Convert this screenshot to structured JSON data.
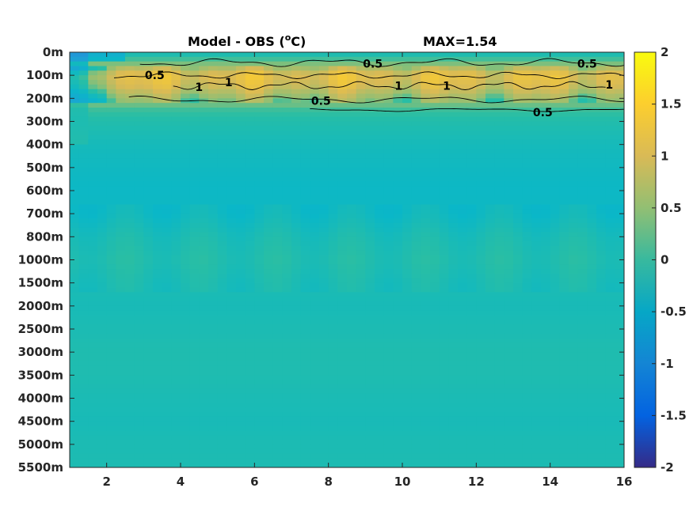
{
  "chart_data": {
    "type": "heatmap",
    "title_main": "Model - OBS (",
    "title_sup": "o",
    "title_tail": "C)",
    "max_label": "MAX=1.54",
    "x_ticks": [
      "2",
      "4",
      "6",
      "8",
      "10",
      "12",
      "14",
      "16"
    ],
    "x_tick_values": [
      2,
      4,
      6,
      8,
      10,
      12,
      14,
      16
    ],
    "xlim": [
      1,
      16
    ],
    "y_ticks": [
      "0m",
      "100m",
      "200m",
      "300m",
      "400m",
      "500m",
      "600m",
      "700m",
      "800m",
      "1000m",
      "1500m",
      "2000m",
      "2500m",
      "3000m",
      "3500m",
      "4000m",
      "4500m",
      "5000m",
      "5500m"
    ],
    "colorbar": {
      "range": [
        -2,
        2
      ],
      "ticks": [
        "2",
        "1.5",
        "1",
        "0.5",
        "0",
        "-0.5",
        "-1",
        "-1.5",
        "-2"
      ],
      "tick_values": [
        2,
        1.5,
        1,
        0.5,
        0,
        -0.5,
        -1,
        -1.5,
        -2
      ],
      "colormap": "parula"
    },
    "contour_levels": [
      0.5,
      1
    ],
    "contour_labels": [
      {
        "text": "0.5",
        "x": 3.3,
        "level": 1
      },
      {
        "text": "1",
        "x": 4.5,
        "level": 1.5
      },
      {
        "text": "1",
        "x": 5.3,
        "level": 1.3
      },
      {
        "text": "0.5",
        "x": 9.2,
        "level": 0.5
      },
      {
        "text": "1",
        "x": 9.9,
        "level": 1.45
      },
      {
        "text": "1",
        "x": 11.2,
        "level": 1.45
      },
      {
        "text": "0.5",
        "x": 15.0,
        "level": 0.5
      },
      {
        "text": "1",
        "x": 15.6,
        "level": 1.4
      },
      {
        "text": "0.5",
        "x": 7.8,
        "level": 2.1
      },
      {
        "text": "0.5",
        "x": 13.8,
        "level": 2.6
      }
    ],
    "depth_profile": [
      {
        "level": 0,
        "value": 0.1
      },
      {
        "level": 0.5,
        "value": 0.45
      },
      {
        "level": 1,
        "value": 1.15
      },
      {
        "level": 1.5,
        "value": 0.95
      },
      {
        "level": 2,
        "value": 0.55
      },
      {
        "level": 2.5,
        "value": 0.3
      },
      {
        "level": 3,
        "value": 0.2
      },
      {
        "level": 4,
        "value": 0.1
      },
      {
        "level": 5,
        "value": 0.05
      },
      {
        "level": 6,
        "value": 0.02
      },
      {
        "level": 7,
        "value": 0.05
      },
      {
        "level": 8,
        "value": 0.15
      },
      {
        "level": 9,
        "value": 0.2
      },
      {
        "level": 10,
        "value": 0.15
      },
      {
        "level": 11,
        "value": 0.12
      },
      {
        "level": 12,
        "value": 0.15
      },
      {
        "level": 13,
        "value": 0.18
      },
      {
        "level": 14,
        "value": 0.17
      },
      {
        "level": 15,
        "value": 0.14
      },
      {
        "level": 16,
        "value": 0.12
      },
      {
        "level": 17,
        "value": 0.15
      },
      {
        "level": 18,
        "value": 0.16
      }
    ],
    "west_column_anomaly": -0.55
  }
}
